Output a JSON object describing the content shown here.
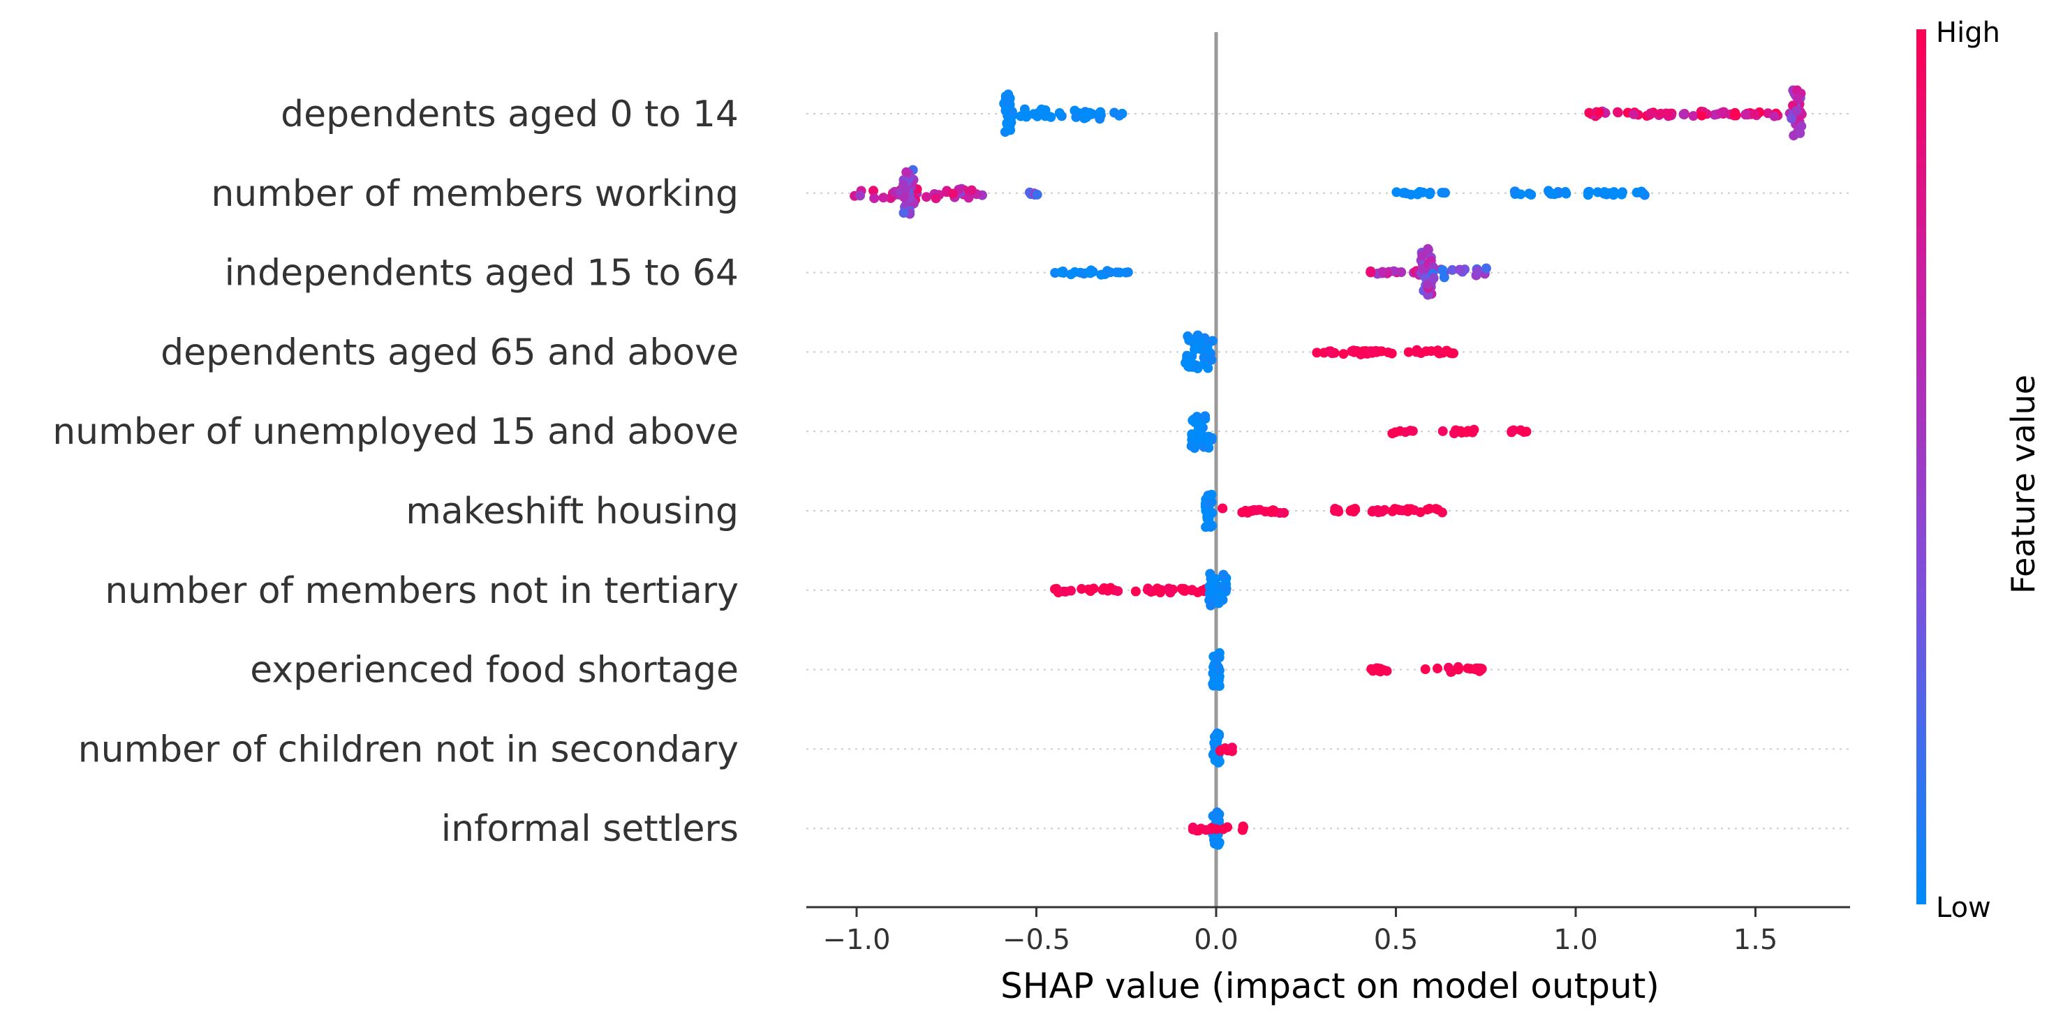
{
  "chart_data": {
    "type": "scatter",
    "subtype": "shap-beeswarm",
    "xlabel": "SHAP value (impact on model output)",
    "xlim": [
      -1.15,
      1.77
    ],
    "x_ticks": [
      -1.0,
      -0.5,
      0.0,
      0.5,
      1.0,
      1.5
    ],
    "x_tick_labels": [
      "−1.0",
      "−0.5",
      "0.0",
      "0.5",
      "1.0",
      "1.5"
    ],
    "zero_line": 0.0,
    "grid": "dotted horizontal row guides",
    "colorbar": {
      "title": "Feature value",
      "high_label": "High",
      "low_label": "Low",
      "colors": [
        "#008bfb",
        "#7b51df",
        "#c81fa8",
        "#ff0052"
      ]
    },
    "features": [
      {
        "name": "dependents aged 0 to 14",
        "clusters": [
          {
            "min": -0.59,
            "max": -0.57,
            "value": 0.0,
            "dense": 3
          },
          {
            "min": -0.57,
            "max": -0.26,
            "value": 0.0,
            "dense": 1
          },
          {
            "min": 1.03,
            "max": 1.6,
            "value": 0.85,
            "dense": 0
          },
          {
            "min": 1.6,
            "max": 1.63,
            "value": 0.6,
            "dense": 3
          }
        ]
      },
      {
        "name": "number of members working",
        "clusters": [
          {
            "min": -1.01,
            "max": -0.65,
            "value": 0.7,
            "dense": 1
          },
          {
            "min": -0.87,
            "max": -0.84,
            "value": 0.45,
            "dense": 3
          },
          {
            "min": -0.52,
            "max": -0.49,
            "value": 0.4,
            "dense": 0
          },
          {
            "min": 0.5,
            "max": 0.64,
            "value": 0.0,
            "dense": 0
          },
          {
            "min": 0.82,
            "max": 0.88,
            "value": 0.0,
            "dense": 0
          },
          {
            "min": 0.92,
            "max": 1.2,
            "value": 0.0,
            "dense": 0
          }
        ]
      },
      {
        "name": "independents aged 15 to 64",
        "clusters": [
          {
            "min": -0.45,
            "max": -0.23,
            "value": 0.0,
            "dense": 0
          },
          {
            "min": 0.4,
            "max": 0.57,
            "value": 0.7,
            "dense": 0
          },
          {
            "min": 0.57,
            "max": 0.6,
            "value": 0.55,
            "dense": 3
          },
          {
            "min": 0.6,
            "max": 0.76,
            "value": 0.35,
            "dense": 1
          }
        ]
      },
      {
        "name": "dependents aged 65 and above",
        "clusters": [
          {
            "min": -0.09,
            "max": -0.01,
            "value": 0.0,
            "dense": 2
          },
          {
            "min": 0.27,
            "max": 0.7,
            "value": 1.0,
            "dense": 0
          }
        ]
      },
      {
        "name": "number of unemployed 15 and above",
        "clusters": [
          {
            "min": -0.07,
            "max": -0.01,
            "value": 0.0,
            "dense": 2
          },
          {
            "min": 0.49,
            "max": 0.55,
            "value": 1.0,
            "dense": 0
          },
          {
            "min": 0.63,
            "max": 0.73,
            "value": 1.0,
            "dense": 0
          },
          {
            "min": 0.82,
            "max": 0.87,
            "value": 1.0,
            "dense": 0
          }
        ]
      },
      {
        "name": "makeshift housing",
        "clusters": [
          {
            "min": -0.03,
            "max": -0.01,
            "value": 0.0,
            "dense": 2
          },
          {
            "min": 0.01,
            "max": 0.2,
            "value": 1.0,
            "dense": 0
          },
          {
            "min": 0.3,
            "max": 0.63,
            "value": 1.0,
            "dense": 0
          }
        ]
      },
      {
        "name": "number of members not in tertiary",
        "clusters": [
          {
            "min": -0.45,
            "max": -0.03,
            "value": 1.0,
            "dense": 0
          },
          {
            "min": -0.02,
            "max": 0.03,
            "value": 0.0,
            "dense": 2
          }
        ]
      },
      {
        "name": "experienced food shortage",
        "clusters": [
          {
            "min": -0.01,
            "max": 0.01,
            "value": 0.0,
            "dense": 2
          },
          {
            "min": 0.39,
            "max": 0.51,
            "value": 1.0,
            "dense": 0
          },
          {
            "min": 0.57,
            "max": 0.74,
            "value": 1.0,
            "dense": 0
          }
        ]
      },
      {
        "name": "number of children not in secondary",
        "clusters": [
          {
            "min": -0.01,
            "max": 0.01,
            "value": 0.0,
            "dense": 2
          },
          {
            "min": 0.01,
            "max": 0.05,
            "value": 1.0,
            "dense": 0
          }
        ]
      },
      {
        "name": "informal settlers",
        "clusters": [
          {
            "min": -0.01,
            "max": 0.01,
            "value": 0.0,
            "dense": 2
          },
          {
            "min": -0.07,
            "max": 0.08,
            "value": 1.0,
            "dense": 0
          }
        ]
      }
    ]
  }
}
